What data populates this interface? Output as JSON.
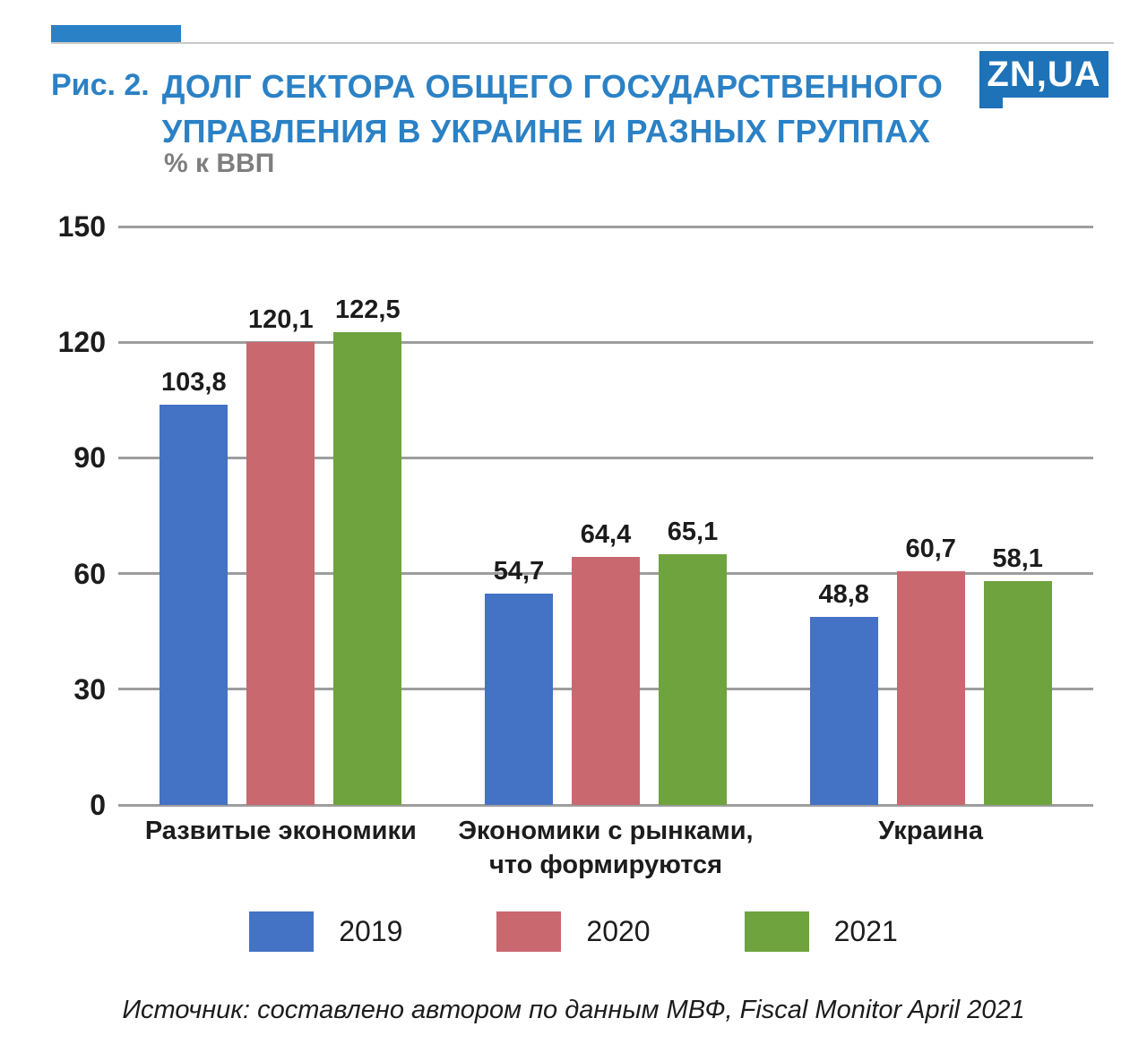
{
  "header": {
    "figure_label": "Рис. 2.",
    "title_line1": "ДОЛГ СЕКТОРА ОБЩЕГО ГОСУДАРСТВЕННОГО",
    "title_line2": "УПРАВЛЕНИЯ В УКРАИНЕ И РАЗНЫХ ГРУППАХ",
    "subtitle": "% к ВВП",
    "logo": "ZN,UA"
  },
  "footer": {
    "source": "Источник: составлено автором по данным МВФ, Fiscal Monitor April 2021"
  },
  "colors": {
    "accent_blue": "#2b81c5",
    "logo_blue": "#1d72b8",
    "grid_gray": "#9d9d9d",
    "text_dark": "#1c1c1c",
    "subtitle_gray": "#7e7e7e",
    "bar_2019": "#4472c4",
    "bar_2020": "#c9686f",
    "bar_2021": "#6ea33d"
  },
  "chart_data": {
    "type": "bar",
    "title": "Рис. 2. Долг сектора общего государственного управления в Украине и разных группах",
    "subtitle": "% к ВВП",
    "xlabel": "",
    "ylabel": "% к ВВП",
    "ylim": [
      0,
      150
    ],
    "yticks": [
      0,
      30,
      60,
      90,
      120,
      150
    ],
    "grid": true,
    "legend_position": "bottom",
    "categories": [
      "Развитые экономики",
      "Экономики с рынками,\nчто формируются",
      "Украина"
    ],
    "series": [
      {
        "name": "2019",
        "color": "#4472c4",
        "values": [
          103.8,
          54.7,
          48.8
        ],
        "labels": [
          "103,8",
          "54,7",
          "48,8"
        ]
      },
      {
        "name": "2020",
        "color": "#c9686f",
        "values": [
          120.1,
          64.4,
          60.7
        ],
        "labels": [
          "120,1",
          "64,4",
          "60,7"
        ]
      },
      {
        "name": "2021",
        "color": "#6ea33d",
        "values": [
          122.5,
          65.1,
          58.1
        ],
        "labels": [
          "122,5",
          "65,1",
          "58,1"
        ]
      }
    ]
  }
}
